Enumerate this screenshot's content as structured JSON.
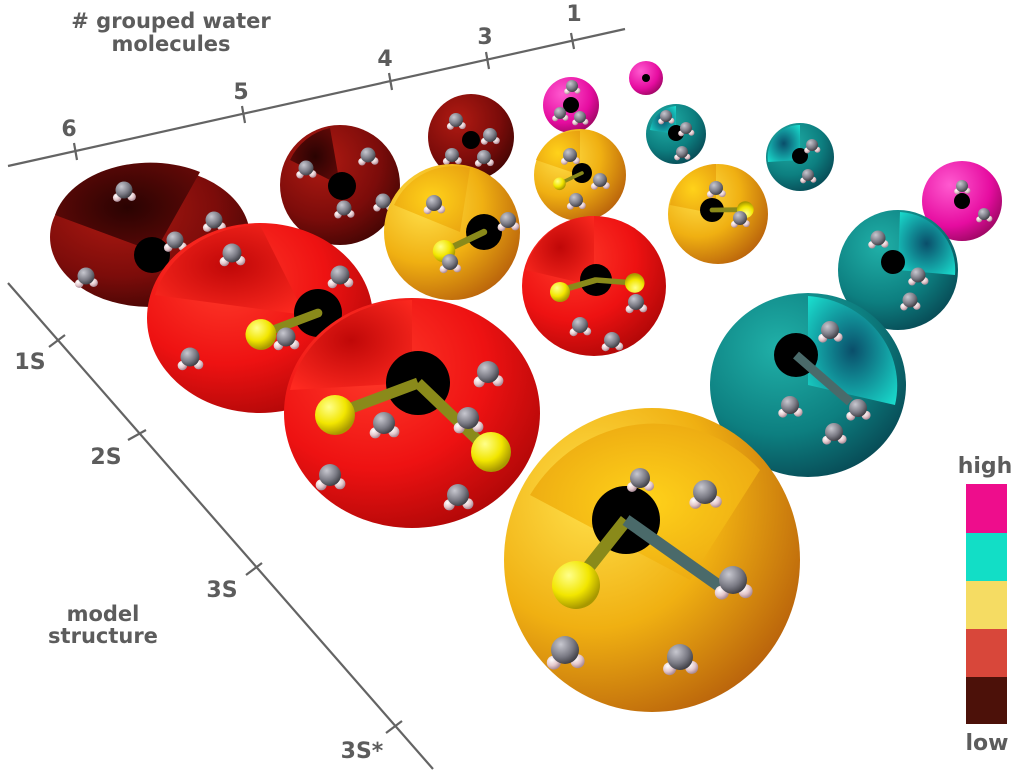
{
  "axes": {
    "top": {
      "title_line1": "# grouped water",
      "title_line2": "molecules",
      "ticks": [
        "1",
        "3",
        "4",
        "5",
        "6"
      ]
    },
    "left": {
      "title_line1": "model",
      "title_line2": "structure",
      "ticks": [
        "1S",
        "2S",
        "3S",
        "3S*"
      ]
    }
  },
  "legend": {
    "high_label": "high",
    "low_label": "low",
    "colors": [
      "#ee0d8c",
      "#12dec6",
      "#f5dc63",
      "#d8473a",
      "#4c1109"
    ]
  },
  "colors": {
    "maroon": "#7c0c0a",
    "red": "#ee1212",
    "yellow_orange": "#f0b012",
    "teal": "#0d8c8a",
    "magenta": "#e60ca0",
    "black": "#000000"
  }
}
